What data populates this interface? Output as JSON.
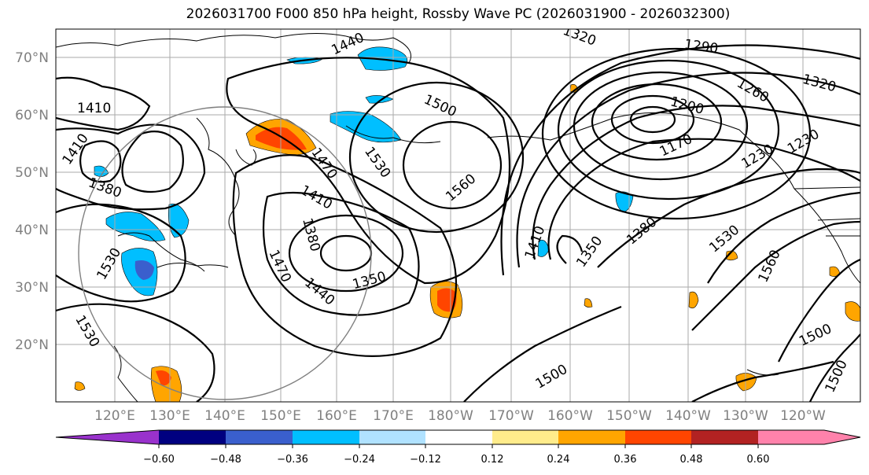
{
  "title": "2026031700 F000 850 hPa height, Rossby Wave PC (2026031900 - 2026032300)",
  "lat_labels": [
    "70°N",
    "60°N",
    "50°N",
    "40°N",
    "30°N",
    "20°N"
  ],
  "lon_labels": [
    "120°E",
    "130°E",
    "140°E",
    "150°E",
    "160°E",
    "170°E",
    "180°W",
    "170°W",
    "160°W",
    "150°W",
    "140°W",
    "130°W",
    "120°W"
  ],
  "contour_labels": [
    "1440",
    "1320",
    "1290",
    "1320",
    "1410",
    "1500",
    "1260",
    "1200",
    "1170",
    "1410",
    "1380",
    "1470",
    "1530",
    "1560",
    "1230",
    "1230",
    "1410",
    "1380",
    "1470",
    "1350",
    "1440",
    "1410",
    "1350",
    "1380",
    "1530",
    "1560",
    "1530",
    "1500",
    "1500",
    "1530",
    "1500"
  ],
  "colorbar": {
    "tick_labels": [
      "−0.60",
      "−0.48",
      "−0.36",
      "−0.24",
      "−0.12",
      "0.12",
      "0.24",
      "0.36",
      "0.48",
      "0.60"
    ],
    "colors": [
      "#9932cc",
      "#000080",
      "#3a5fcd",
      "#00bfff",
      "#b0e2ff",
      "#ffffff",
      "#ffec8b",
      "#ffa500",
      "#ff4500",
      "#b22222",
      "#ff82ab"
    ]
  },
  "shading": {
    "negative": "#00bfff",
    "positive": "#ffa500",
    "strong_positive": "#ff4500",
    "strong_negative": "#3a5fcd"
  }
}
